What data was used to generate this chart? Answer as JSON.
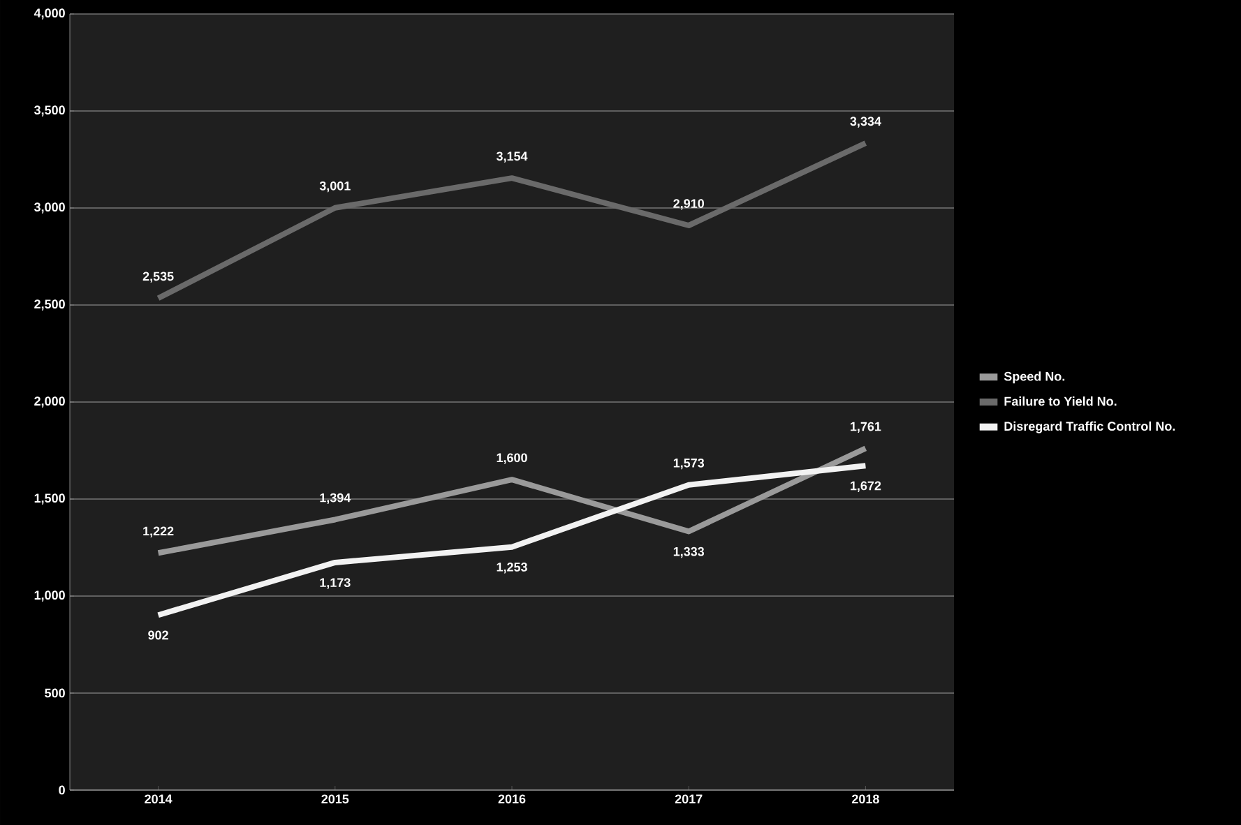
{
  "chart_data": {
    "type": "line",
    "categories": [
      "2014",
      "2015",
      "2016",
      "2017",
      "2018"
    ],
    "series": [
      {
        "name": "Speed No.",
        "color": "#9a9a9a",
        "values": [
          1222,
          1394,
          1600,
          1333,
          1761
        ],
        "value_labels": [
          "1,222",
          "1,394",
          "1,600",
          "1,333",
          "1,761"
        ]
      },
      {
        "name": "Failure to Yield No.",
        "color": "#6a6a6a",
        "values": [
          2535,
          3001,
          3154,
          2910,
          3334
        ],
        "value_labels": [
          "2,535",
          "3,001",
          "3,154",
          "2,910",
          "3,334"
        ]
      },
      {
        "name": "Disregard Traffic Control No.",
        "color": "#f2f2f2",
        "values": [
          902,
          1173,
          1253,
          1573,
          1672
        ],
        "value_labels": [
          "902",
          "1,173",
          "1,253",
          "1,573",
          "1,672"
        ]
      }
    ],
    "ylim": [
      0,
      4000
    ],
    "yticks": [
      {
        "value": 0,
        "label": "0"
      },
      {
        "value": 500,
        "label": "500"
      },
      {
        "value": 1000,
        "label": "1,000"
      },
      {
        "value": 1500,
        "label": "1,500"
      },
      {
        "value": 2000,
        "label": "2,000"
      },
      {
        "value": 2500,
        "label": "2,500"
      },
      {
        "value": 3000,
        "label": "3,000"
      },
      {
        "value": 3500,
        "label": "3,500"
      },
      {
        "value": 4000,
        "label": "4,000"
      }
    ],
    "grid": "y",
    "legend": "right",
    "marker": "none",
    "line_style": "solid"
  }
}
